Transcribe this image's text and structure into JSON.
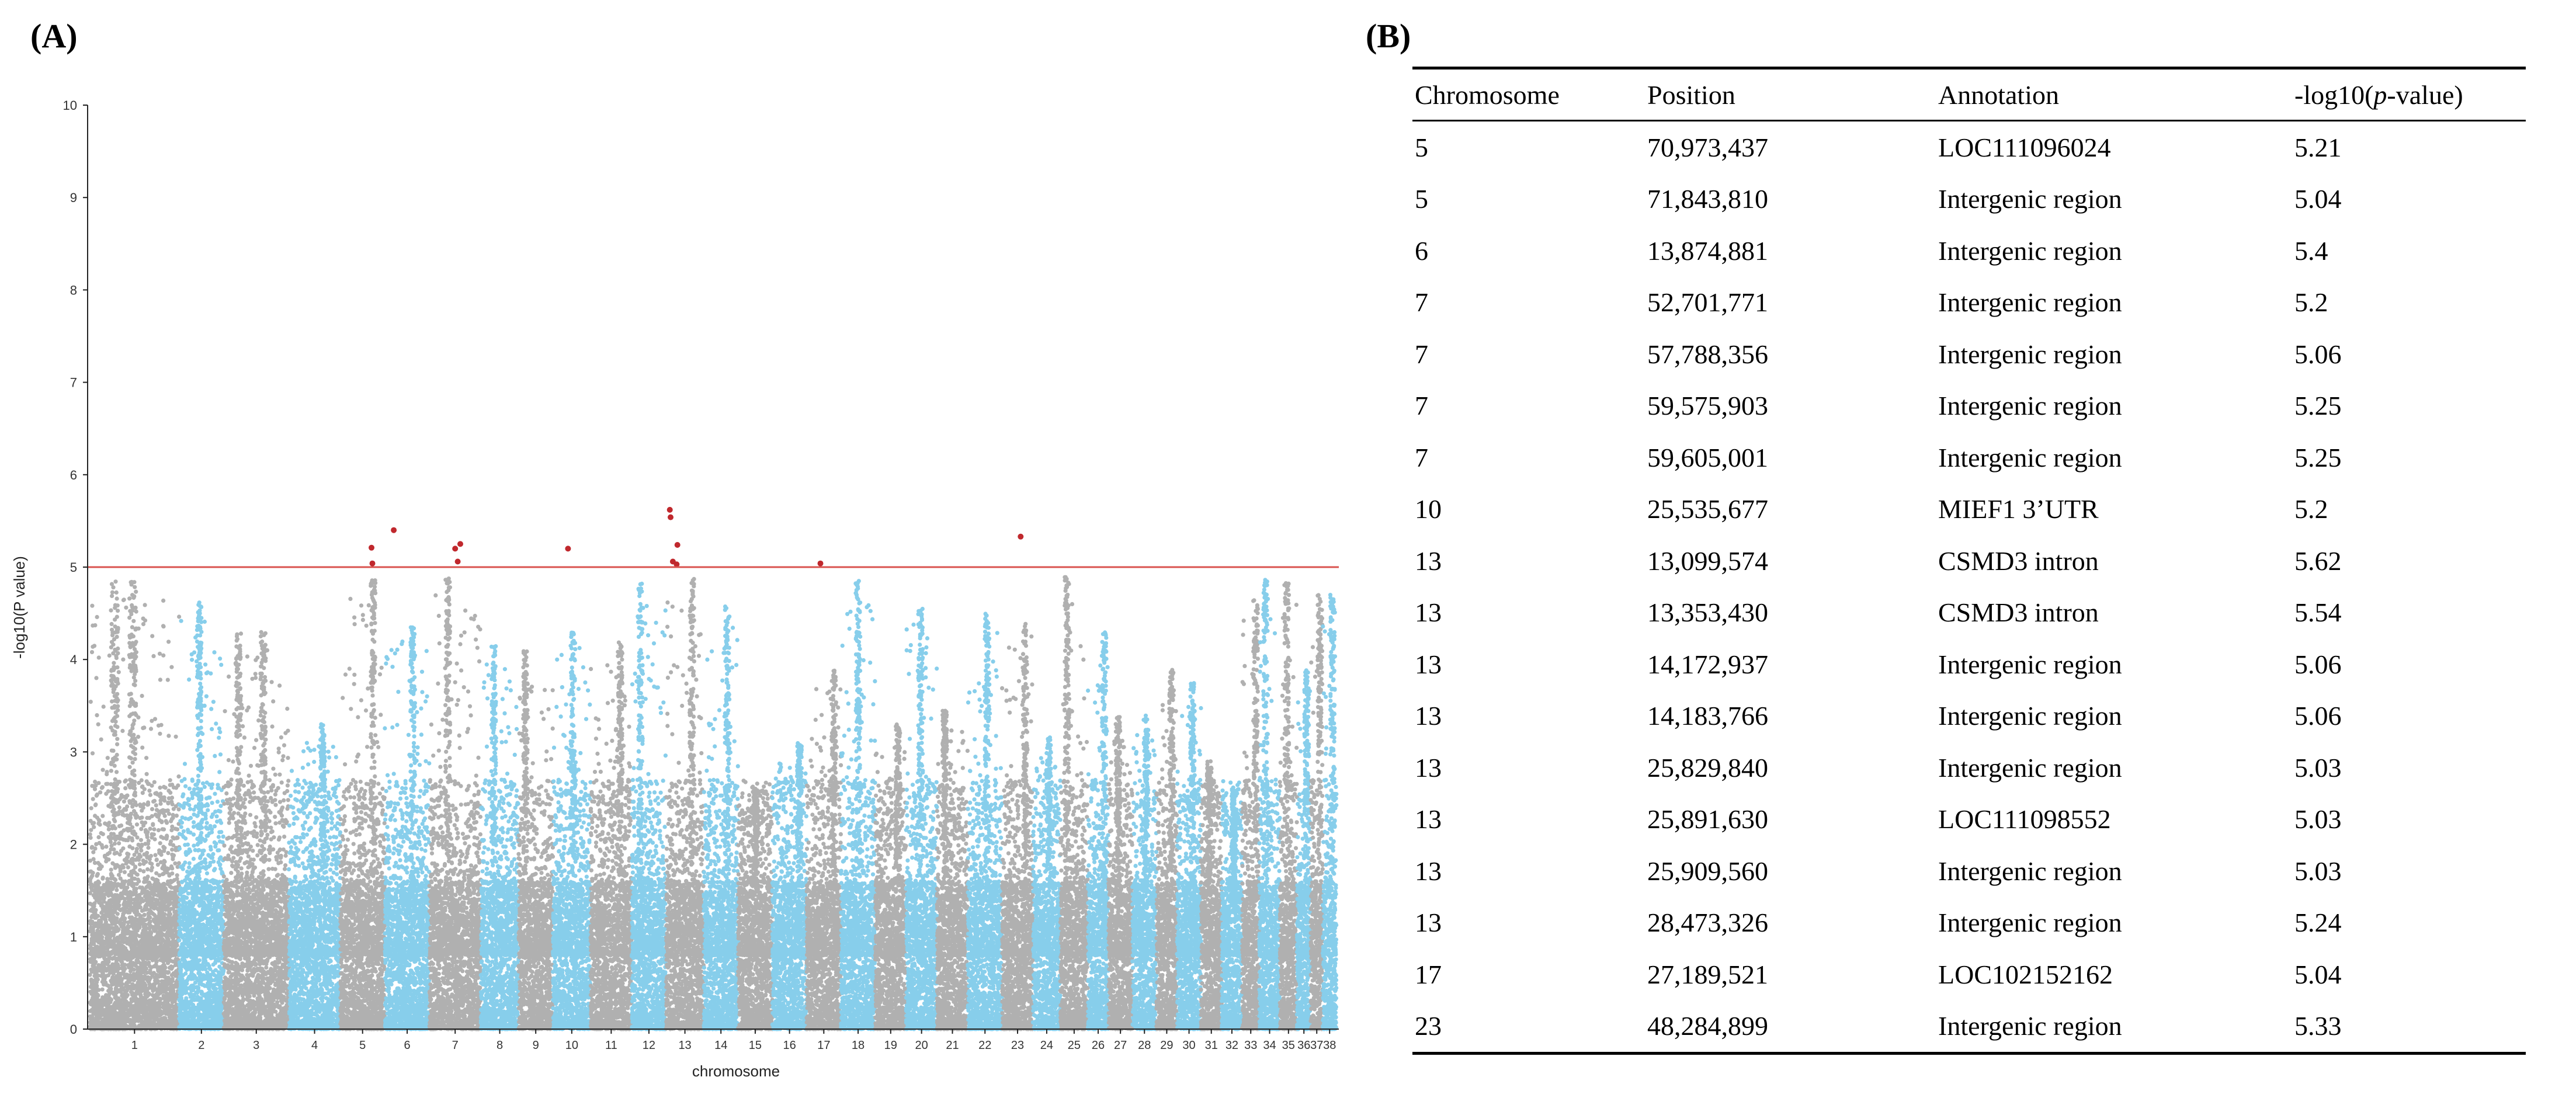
{
  "panels": {
    "a_label": "(A)",
    "b_label": "(B)"
  },
  "chart_data": {
    "type": "scatter",
    "subtype": "manhattan",
    "xlabel": "chromosome",
    "ylabel": "-log10(P value)",
    "ylim": [
      0,
      10
    ],
    "yticks": [
      0,
      1,
      2,
      3,
      4,
      5,
      6,
      7,
      8,
      9,
      10
    ],
    "threshold": 5,
    "threshold_color": "#d9534f",
    "colors": {
      "odd": "#b0b0b0",
      "even": "#87ceeb",
      "significant": "#c0282d"
    },
    "chromosomes": [
      {
        "label": "1",
        "size": 2.6,
        "peak": 4.85
      },
      {
        "label": "2",
        "size": 1.3,
        "peak": 4.65
      },
      {
        "label": "3",
        "size": 1.9,
        "peak": 4.3
      },
      {
        "label": "4",
        "size": 1.5,
        "peak": 3.3
      },
      {
        "label": "5",
        "size": 1.3,
        "peak": 4.9
      },
      {
        "label": "6",
        "size": 1.3,
        "peak": 4.4
      },
      {
        "label": "7",
        "size": 1.5,
        "peak": 4.9
      },
      {
        "label": "8",
        "size": 1.1,
        "peak": 4.15
      },
      {
        "label": "9",
        "size": 1.0,
        "peak": 4.1
      },
      {
        "label": "10",
        "size": 1.1,
        "peak": 4.35
      },
      {
        "label": "11",
        "size": 1.2,
        "peak": 4.2
      },
      {
        "label": "12",
        "size": 1.0,
        "peak": 4.85
      },
      {
        "label": "13",
        "size": 1.1,
        "peak": 4.9
      },
      {
        "label": "14",
        "size": 1.0,
        "peak": 4.6
      },
      {
        "label": "15",
        "size": 1.0,
        "peak": 2.6
      },
      {
        "label": "16",
        "size": 1.0,
        "peak": 3.1
      },
      {
        "label": "17",
        "size": 1.0,
        "peak": 3.9
      },
      {
        "label": "18",
        "size": 1.0,
        "peak": 4.85
      },
      {
        "label": "19",
        "size": 0.9,
        "peak": 3.3
      },
      {
        "label": "20",
        "size": 0.9,
        "peak": 4.6
      },
      {
        "label": "21",
        "size": 0.9,
        "peak": 3.45
      },
      {
        "label": "22",
        "size": 1.0,
        "peak": 4.55
      },
      {
        "label": "23",
        "size": 0.9,
        "peak": 4.45
      },
      {
        "label": "24",
        "size": 0.8,
        "peak": 3.2
      },
      {
        "label": "25",
        "size": 0.8,
        "peak": 4.9
      },
      {
        "label": "26",
        "size": 0.6,
        "peak": 4.3
      },
      {
        "label": "27",
        "size": 0.7,
        "peak": 3.4
      },
      {
        "label": "28",
        "size": 0.7,
        "peak": 3.4
      },
      {
        "label": "29",
        "size": 0.6,
        "peak": 3.9
      },
      {
        "label": "30",
        "size": 0.7,
        "peak": 3.75
      },
      {
        "label": "31",
        "size": 0.6,
        "peak": 2.9
      },
      {
        "label": "32",
        "size": 0.6,
        "peak": 2.6
      },
      {
        "label": "33",
        "size": 0.5,
        "peak": 4.65
      },
      {
        "label": "34",
        "size": 0.6,
        "peak": 4.9
      },
      {
        "label": "35",
        "size": 0.5,
        "peak": 4.85
      },
      {
        "label": "36",
        "size": 0.4,
        "peak": 3.9
      },
      {
        "label": "37",
        "size": 0.35,
        "peak": 4.7
      },
      {
        "label": "38",
        "size": 0.4,
        "peak": 4.7
      }
    ],
    "significant_points": [
      {
        "chr": "5",
        "pos": 0.7,
        "value": 5.21
      },
      {
        "chr": "5",
        "pos": 0.72,
        "value": 5.04
      },
      {
        "chr": "6",
        "pos": 0.2,
        "value": 5.4
      },
      {
        "chr": "7",
        "pos": 0.5,
        "value": 5.2
      },
      {
        "chr": "7",
        "pos": 0.55,
        "value": 5.06
      },
      {
        "chr": "7",
        "pos": 0.6,
        "value": 5.25
      },
      {
        "chr": "10",
        "pos": 0.4,
        "value": 5.2
      },
      {
        "chr": "13",
        "pos": 0.1,
        "value": 5.62
      },
      {
        "chr": "13",
        "pos": 0.12,
        "value": 5.54
      },
      {
        "chr": "13",
        "pos": 0.18,
        "value": 5.06
      },
      {
        "chr": "13",
        "pos": 0.3,
        "value": 5.24
      },
      {
        "chr": "13",
        "pos": 0.28,
        "value": 5.03
      },
      {
        "chr": "17",
        "pos": 0.4,
        "value": 5.04
      },
      {
        "chr": "23",
        "pos": 0.6,
        "value": 5.33
      }
    ]
  },
  "table": {
    "headers": [
      "Chromosome",
      "Position",
      "Annotation",
      "-log10(p-value)"
    ],
    "rows": [
      [
        "5",
        "70,973,437",
        "LOC111096024",
        "5.21"
      ],
      [
        "5",
        "71,843,810",
        "Intergenic region",
        "5.04"
      ],
      [
        "6",
        "13,874,881",
        "Intergenic region",
        "5.4"
      ],
      [
        "7",
        "52,701,771",
        "Intergenic region",
        "5.2"
      ],
      [
        "7",
        "57,788,356",
        "Intergenic region",
        "5.06"
      ],
      [
        "7",
        "59,575,903",
        "Intergenic region",
        "5.25"
      ],
      [
        "7",
        "59,605,001",
        "Intergenic region",
        "5.25"
      ],
      [
        "10",
        "25,535,677",
        "MIEF1 3’UTR",
        "5.2"
      ],
      [
        "13",
        "13,099,574",
        "CSMD3 intron",
        "5.62"
      ],
      [
        "13",
        "13,353,430",
        "CSMD3 intron",
        "5.54"
      ],
      [
        "13",
        "14,172,937",
        "Intergenic region",
        "5.06"
      ],
      [
        "13",
        "14,183,766",
        "Intergenic region",
        "5.06"
      ],
      [
        "13",
        "25,829,840",
        "Intergenic region",
        "5.03"
      ],
      [
        "13",
        "25,891,630",
        "LOC111098552",
        "5.03"
      ],
      [
        "13",
        "25,909,560",
        "Intergenic region",
        "5.03"
      ],
      [
        "13",
        "28,473,326",
        "Intergenic region",
        "5.24"
      ],
      [
        "17",
        "27,189,521",
        "LOC102152162",
        "5.04"
      ],
      [
        "23",
        "48,284,899",
        "Intergenic region",
        "5.33"
      ]
    ]
  }
}
